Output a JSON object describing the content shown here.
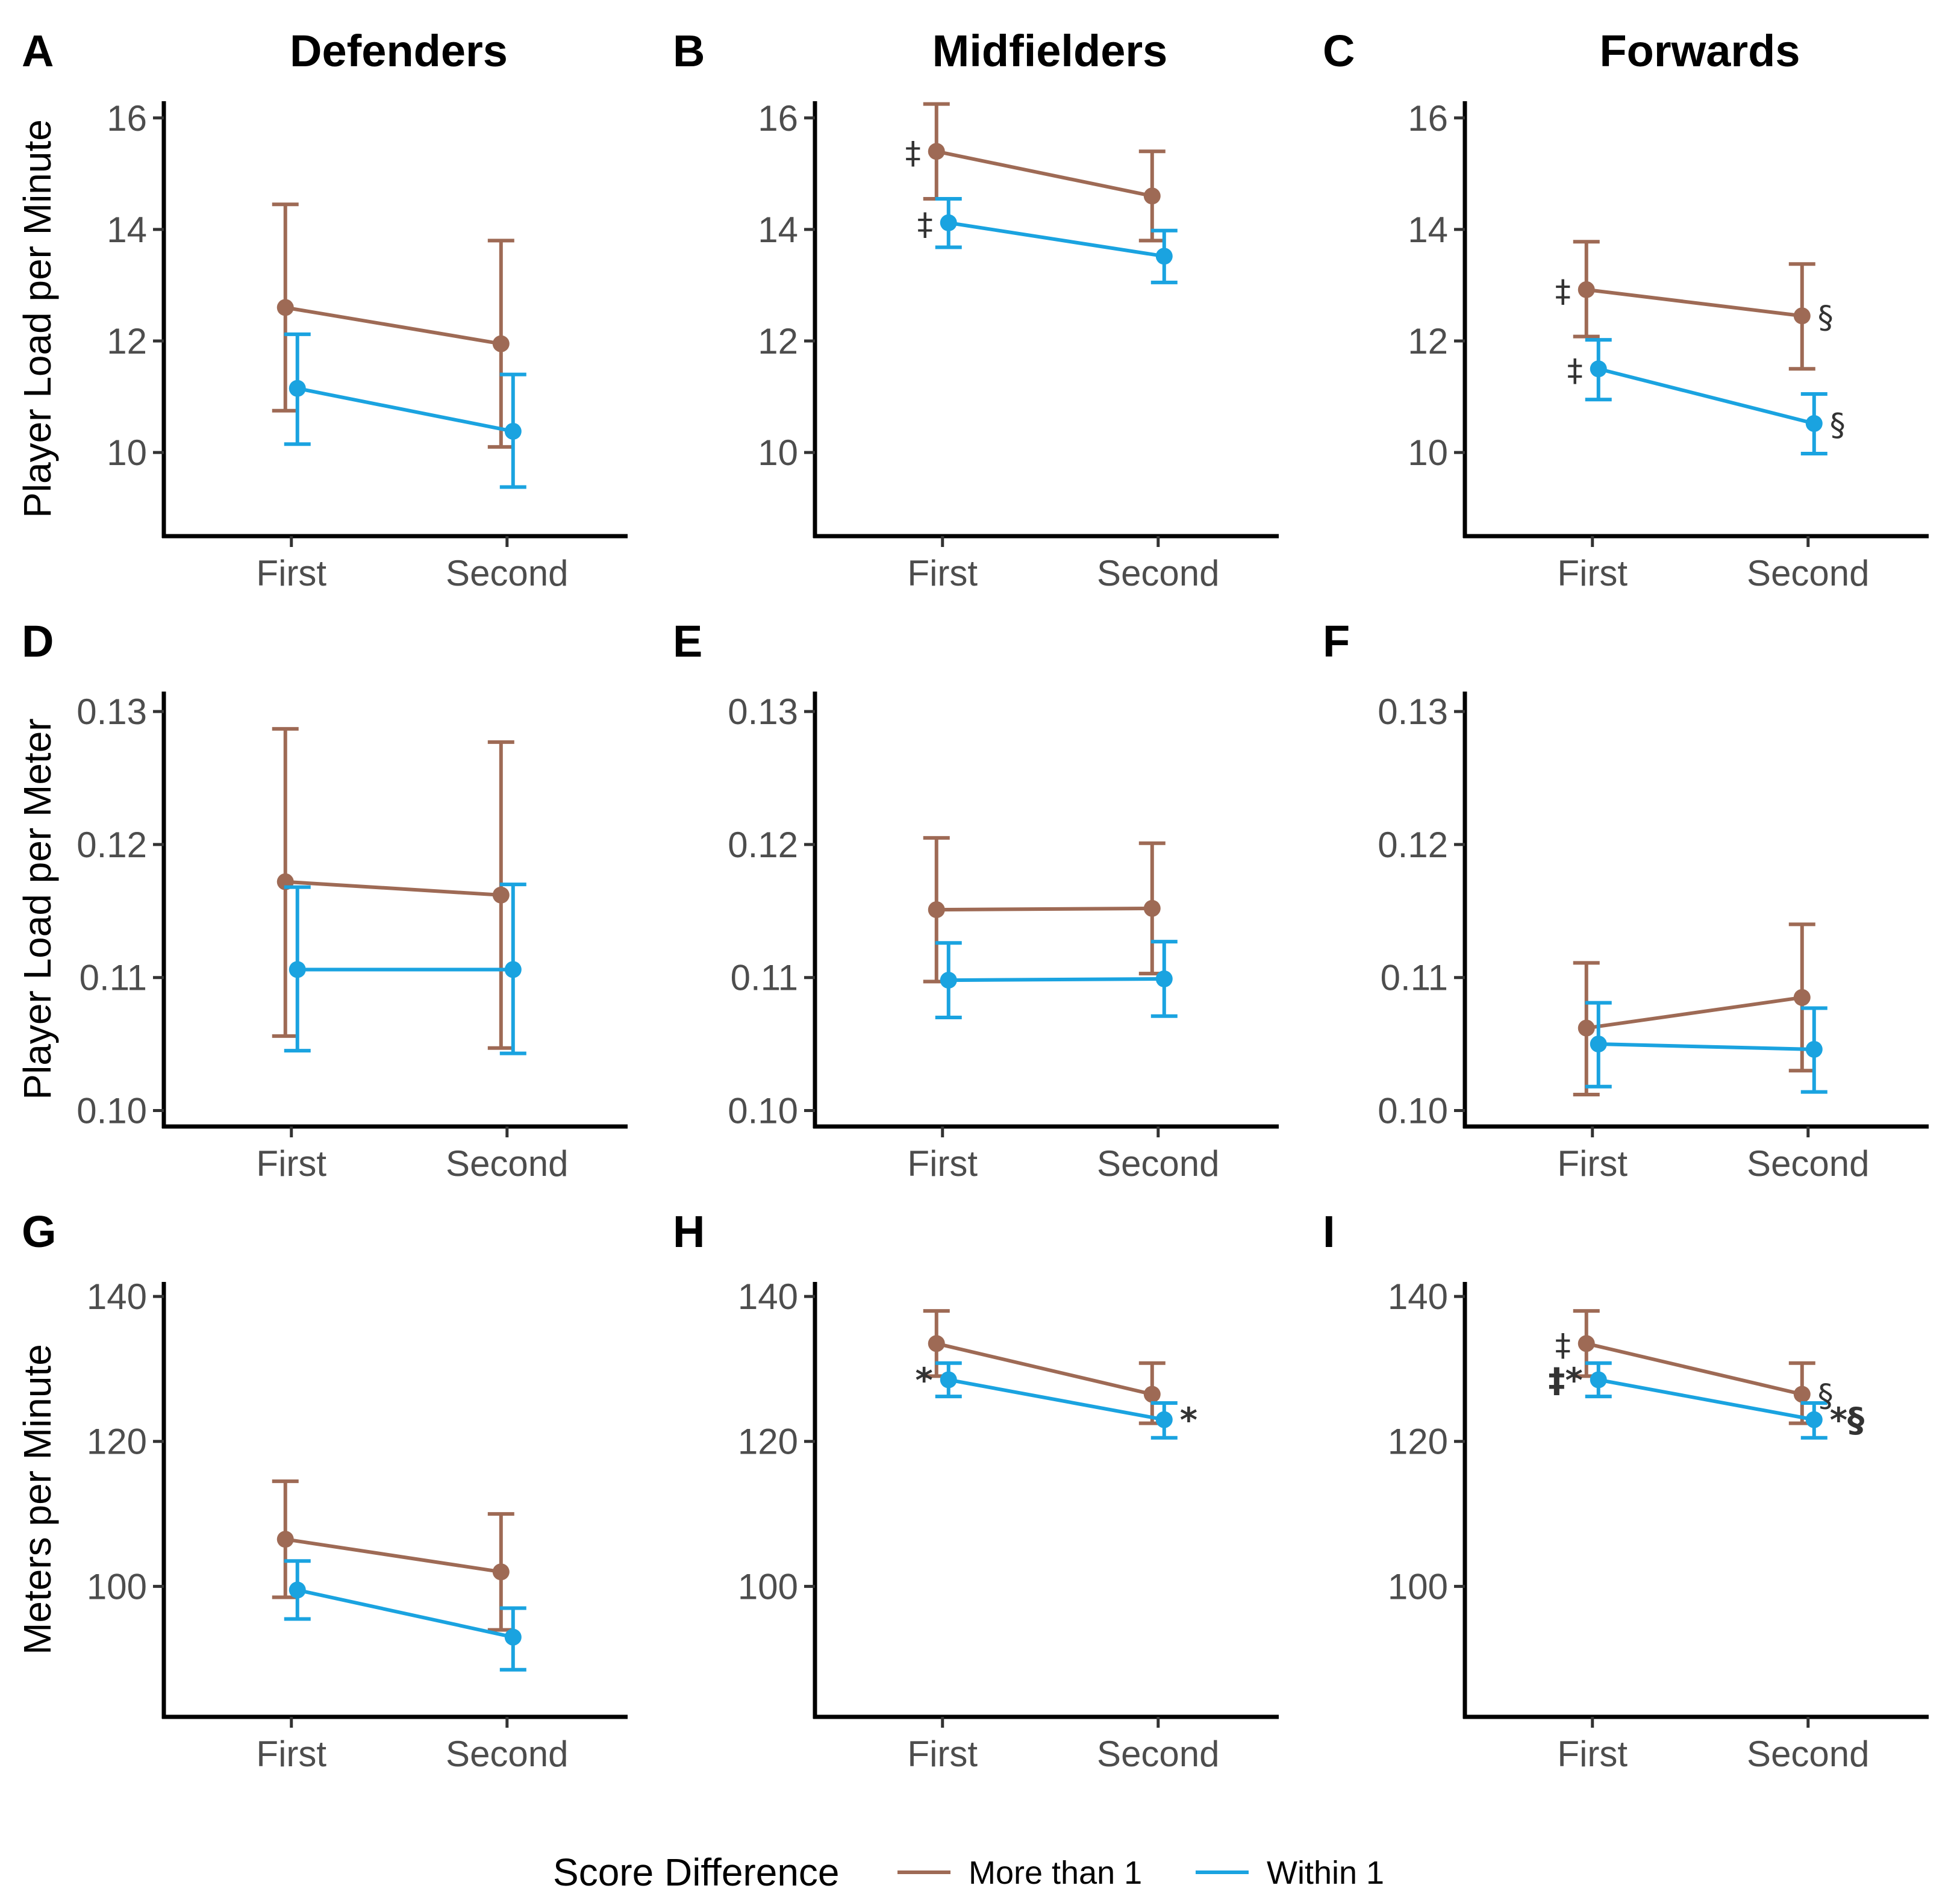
{
  "chart_data": {
    "type": "line",
    "column_titles": [
      "Defenders",
      "Midfielders",
      "Forwards"
    ],
    "row_ylabels": [
      "Player Load per Minute",
      "Player Load per Meter",
      "Meters per Minute"
    ],
    "categories": [
      "First",
      "Second"
    ],
    "legend": {
      "title": "Score Difference",
      "position": "bottom",
      "entries": [
        {
          "name": "More than 1",
          "color": "#9e6a55"
        },
        {
          "name": "Within 1",
          "color": "#1aa3e0"
        }
      ]
    },
    "rows": [
      {
        "ylim": [
          8.5,
          16.3
        ],
        "yticks": [
          10,
          12,
          14,
          16
        ],
        "tick_labels": [
          "10",
          "12",
          "14",
          "16"
        ]
      },
      {
        "ylim": [
          0.0988,
          0.1315
        ],
        "yticks": [
          0.1,
          0.11,
          0.12,
          0.13
        ],
        "tick_labels": [
          "0.10",
          "0.11",
          "0.12",
          "0.13"
        ]
      },
      {
        "ylim": [
          82,
          142
        ],
        "yticks": [
          100,
          120,
          140
        ],
        "tick_labels": [
          "100",
          "120",
          "140"
        ]
      }
    ],
    "panels": [
      {
        "letter": "A",
        "row": 0,
        "col": 0,
        "series": [
          {
            "name": "More than 1",
            "values": [
              12.6,
              11.95
            ],
            "lower": [
              10.75,
              10.1
            ],
            "upper": [
              14.45,
              13.8
            ]
          },
          {
            "name": "Within 1",
            "values": [
              11.15,
              10.38
            ],
            "lower": [
              10.15,
              9.38
            ],
            "upper": [
              12.12,
              11.4
            ]
          }
        ],
        "annotations": []
      },
      {
        "letter": "B",
        "row": 0,
        "col": 1,
        "series": [
          {
            "name": "More than 1",
            "values": [
              15.4,
              14.6
            ],
            "lower": [
              14.55,
              13.8
            ],
            "upper": [
              16.25,
              15.4
            ]
          },
          {
            "name": "Within 1",
            "values": [
              14.12,
              13.52
            ],
            "lower": [
              13.68,
              13.05
            ],
            "upper": [
              14.55,
              13.98
            ]
          }
        ],
        "annotations": [
          {
            "text": "‡",
            "series": 0,
            "point": 0,
            "side": "left"
          },
          {
            "text": "‡",
            "series": 1,
            "point": 0,
            "side": "left"
          }
        ]
      },
      {
        "letter": "C",
        "row": 0,
        "col": 2,
        "series": [
          {
            "name": "More than 1",
            "values": [
              12.92,
              12.45
            ],
            "lower": [
              12.08,
              11.5
            ],
            "upper": [
              13.78,
              13.38
            ]
          },
          {
            "name": "Within 1",
            "values": [
              11.5,
              10.52
            ],
            "lower": [
              10.95,
              9.98
            ],
            "upper": [
              12.02,
              11.05
            ]
          }
        ],
        "annotations": [
          {
            "text": "‡",
            "series": 0,
            "point": 0,
            "side": "left"
          },
          {
            "text": "§",
            "series": 0,
            "point": 1,
            "side": "right"
          },
          {
            "text": "‡",
            "series": 1,
            "point": 0,
            "side": "left"
          },
          {
            "text": "§",
            "series": 1,
            "point": 1,
            "side": "right"
          }
        ]
      },
      {
        "letter": "D",
        "row": 1,
        "col": 0,
        "series": [
          {
            "name": "More than 1",
            "values": [
              0.1172,
              0.1162
            ],
            "lower": [
              0.1056,
              0.1047
            ],
            "upper": [
              0.1287,
              0.1277
            ]
          },
          {
            "name": "Within 1",
            "values": [
              0.1106,
              0.1106
            ],
            "lower": [
              0.1045,
              0.1043
            ],
            "upper": [
              0.1168,
              0.117
            ]
          }
        ],
        "annotations": []
      },
      {
        "letter": "E",
        "row": 1,
        "col": 1,
        "series": [
          {
            "name": "More than 1",
            "values": [
              0.1151,
              0.1152
            ],
            "lower": [
              0.1097,
              0.1103
            ],
            "upper": [
              0.1205,
              0.1201
            ]
          },
          {
            "name": "Within 1",
            "values": [
              0.1098,
              0.1099
            ],
            "lower": [
              0.107,
              0.1071
            ],
            "upper": [
              0.1126,
              0.1127
            ]
          }
        ],
        "annotations": []
      },
      {
        "letter": "F",
        "row": 1,
        "col": 2,
        "series": [
          {
            "name": "More than 1",
            "values": [
              0.1062,
              0.1085
            ],
            "lower": [
              0.1012,
              0.103
            ],
            "upper": [
              0.1111,
              0.114
            ]
          },
          {
            "name": "Within 1",
            "values": [
              0.105,
              0.1046
            ],
            "lower": [
              0.1018,
              0.1014
            ],
            "upper": [
              0.1081,
              0.1077
            ]
          }
        ],
        "annotations": []
      },
      {
        "letter": "G",
        "row": 2,
        "col": 0,
        "series": [
          {
            "name": "More than 1",
            "values": [
              106.5,
              102.0
            ],
            "lower": [
              98.5,
              94.0
            ],
            "upper": [
              114.5,
              110.0
            ]
          },
          {
            "name": "Within 1",
            "values": [
              99.5,
              93.0
            ],
            "lower": [
              95.5,
              88.5
            ],
            "upper": [
              103.5,
              97.0
            ]
          }
        ],
        "annotations": []
      },
      {
        "letter": "H",
        "row": 2,
        "col": 1,
        "series": [
          {
            "name": "More than 1",
            "values": [
              133.5,
              126.5
            ],
            "lower": [
              129.0,
              122.5
            ],
            "upper": [
              138.0,
              130.8
            ]
          },
          {
            "name": "Within 1",
            "values": [
              128.5,
              123.0
            ],
            "lower": [
              126.2,
              120.5
            ],
            "upper": [
              130.8,
              125.3
            ]
          }
        ],
        "annotations": [
          {
            "text": "*",
            "series": 1,
            "point": 0,
            "side": "left"
          },
          {
            "text": "*",
            "series": 1,
            "point": 1,
            "side": "right"
          }
        ]
      },
      {
        "letter": "I",
        "row": 2,
        "col": 2,
        "series": [
          {
            "name": "More than 1",
            "values": [
              133.5,
              126.5
            ],
            "lower": [
              129.0,
              122.5
            ],
            "upper": [
              138.0,
              130.8
            ]
          },
          {
            "name": "Within 1",
            "values": [
              128.5,
              123.0
            ],
            "lower": [
              126.2,
              120.5
            ],
            "upper": [
              130.8,
              125.3
            ]
          }
        ],
        "annotations": [
          {
            "text": "‡",
            "series": 0,
            "point": 0,
            "side": "left"
          },
          {
            "text": "§",
            "series": 0,
            "point": 1,
            "side": "right"
          },
          {
            "text": "‡*",
            "series": 1,
            "point": 0,
            "side": "left"
          },
          {
            "text": "*§",
            "series": 1,
            "point": 1,
            "side": "right"
          }
        ]
      }
    ]
  }
}
